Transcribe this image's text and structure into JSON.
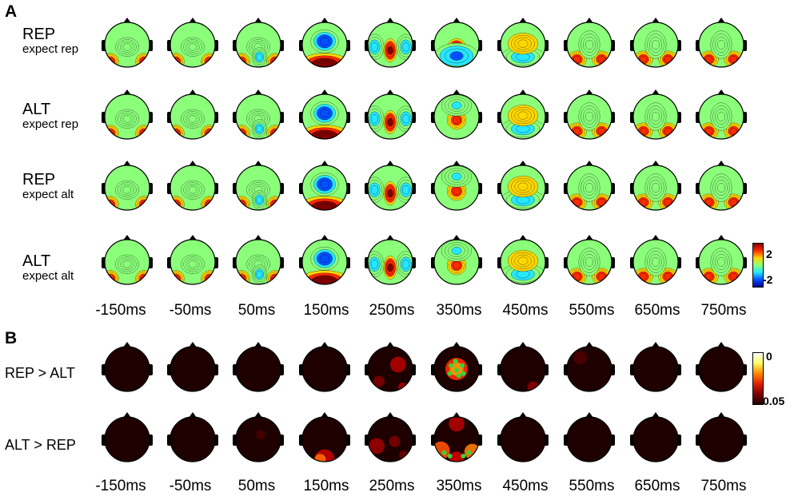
{
  "panel_a": {
    "letter": "A",
    "rows": [
      {
        "main": "REP",
        "sub": "expect rep"
      },
      {
        "main": "ALT",
        "sub": "expect rep"
      },
      {
        "main": "REP",
        "sub": "expect alt"
      },
      {
        "main": "ALT",
        "sub": "expect alt"
      }
    ],
    "colorbar": {
      "max_label": "2",
      "min_label": "-2",
      "colors": [
        "#7f0000",
        "#ff2a00",
        "#ffd700",
        "#8bff7a",
        "#27e6ff",
        "#0050ff",
        "#00008f"
      ]
    }
  },
  "panel_b": {
    "letter": "B",
    "rows": [
      "REP > ALT",
      "ALT > REP"
    ],
    "colorbar": {
      "top_label": "0",
      "bottom_label": "0.05",
      "colors": [
        "#ffffff",
        "#ffff66",
        "#ff8a00",
        "#e02000",
        "#7a0000",
        "#200000"
      ]
    }
  },
  "times": [
    "-150ms",
    "-50ms",
    "50ms",
    "150ms",
    "250ms",
    "350ms",
    "450ms",
    "550ms",
    "650ms",
    "750ms"
  ]
}
